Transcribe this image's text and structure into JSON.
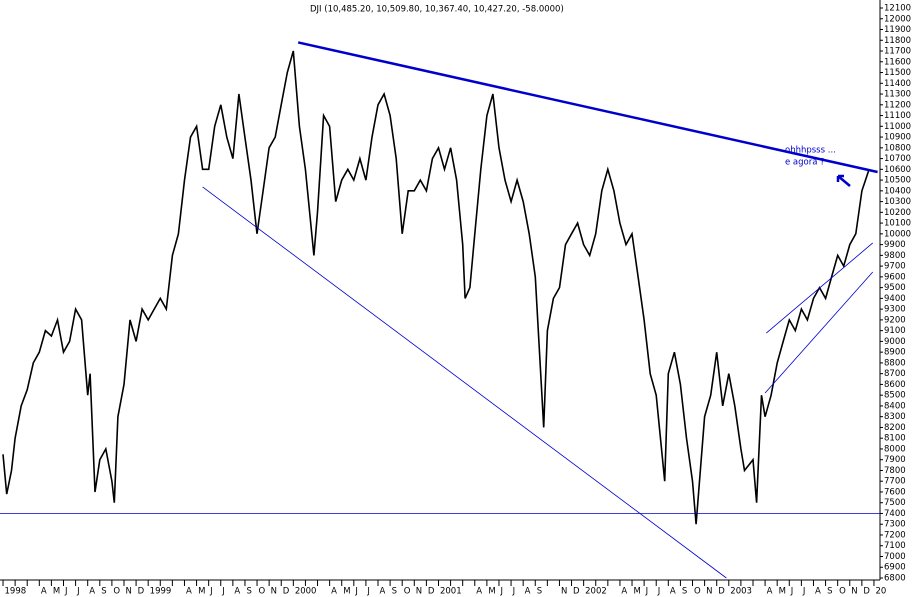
{
  "chart_data": {
    "type": "line",
    "title": "DJI (10,485.20, 10,509.80, 10,367.40, 10,427.20, -58.0000)",
    "annotations": [
      "ohhhpsss  ...",
      "e agora ?"
    ],
    "categories": [
      "1998",
      null,
      null,
      "A",
      "M",
      "J",
      "J",
      "A",
      "S",
      "O",
      "N",
      "D",
      "1999",
      null,
      null,
      "A",
      "M",
      "J",
      "J",
      "A",
      "S",
      "O",
      "N",
      "D",
      "2000",
      null,
      null,
      "A",
      "M",
      "J",
      "J",
      "A",
      "S",
      "O",
      "N",
      "D",
      "2001",
      null,
      null,
      "A",
      "M",
      "J",
      "J",
      "A",
      "S",
      null,
      "N",
      "D",
      "2002",
      null,
      null,
      "A",
      "M",
      "J",
      "J",
      "A",
      "S",
      "O",
      "N",
      "D",
      "2003",
      null,
      null,
      "A",
      "M",
      "J",
      "J",
      "A",
      "S",
      "O",
      "N",
      "D",
      "20"
    ],
    "x": [
      0,
      0.3,
      0.7,
      1,
      1.5,
      2,
      2.5,
      3,
      3.5,
      4,
      4.5,
      5,
      5.5,
      6,
      6.5,
      7,
      7.2,
      7.6,
      8,
      8.5,
      9,
      9.2,
      9.5,
      10,
      10.5,
      11,
      11.5,
      12,
      12.5,
      13,
      13.5,
      14,
      14.5,
      15,
      15.5,
      16,
      16.5,
      17,
      17.5,
      18,
      18.5,
      19,
      19.5,
      20,
      20.5,
      21,
      21.5,
      22,
      22.5,
      23,
      23.5,
      24,
      24.5,
      25,
      25.7,
      26,
      26.5,
      27,
      27.5,
      28,
      28.5,
      29,
      29.5,
      30,
      30.5,
      31,
      31.5,
      32,
      32.5,
      33,
      33.5,
      34,
      34.5,
      35,
      35.5,
      36,
      36.5,
      37,
      37.5,
      38,
      38.2,
      38.6,
      39,
      39.5,
      40,
      40.5,
      41,
      41.5,
      42,
      42.5,
      43,
      43.5,
      44,
      44.7,
      45,
      45.5,
      46,
      46.5,
      47,
      47.5,
      48,
      48.5,
      49,
      49.5,
      50,
      50.5,
      51,
      51.5,
      52,
      52.5,
      53,
      53.5,
      54,
      54.7,
      55,
      55.5,
      56,
      56.5,
      57,
      57.3,
      58,
      58.5,
      59,
      59.5,
      60,
      60.5,
      61,
      61.3,
      62,
      62.3,
      62.7,
      63,
      63.5,
      64,
      64.5,
      65,
      65.5,
      66,
      66.5,
      67,
      67.5,
      68,
      68.5,
      69,
      69.5,
      70,
      70.5,
      71,
      71.3,
      71.6
    ],
    "series": [
      {
        "name": "DJI",
        "color": "#000000",
        "values": [
          7950,
          7580,
          7800,
          8100,
          8400,
          8550,
          8800,
          8900,
          9100,
          9050,
          9200,
          8900,
          9000,
          9300,
          9200,
          8500,
          8700,
          7600,
          7900,
          8000,
          7700,
          7500,
          8300,
          8600,
          9200,
          9000,
          9300,
          9200,
          9300,
          9400,
          9300,
          9800,
          10000,
          10500,
          10900,
          11000,
          10600,
          10600,
          11000,
          11200,
          10900,
          10700,
          11300,
          10900,
          10500,
          10000,
          10400,
          10800,
          10900,
          11200,
          11500,
          11700,
          11000,
          10600,
          9800,
          10200,
          11100,
          11000,
          10300,
          10500,
          10600,
          10500,
          10700,
          10500,
          10900,
          11200,
          11300,
          11100,
          10700,
          10000,
          10400,
          10400,
          10500,
          10400,
          10700,
          10800,
          10600,
          10800,
          10500,
          9900,
          9400,
          9500,
          10000,
          10600,
          11100,
          11300,
          10800,
          10500,
          10300,
          10500,
          10300,
          10000,
          9600,
          8200,
          9100,
          9400,
          9500,
          9900,
          10000,
          10100,
          9900,
          9800,
          10000,
          10400,
          10600,
          10400,
          10100,
          9900,
          10000,
          9600,
          9200,
          8700,
          8500,
          7700,
          8700,
          8900,
          8600,
          8100,
          7700,
          7300,
          8300,
          8500,
          8900,
          8400,
          8700,
          8400,
          8000,
          7800,
          7900,
          7500,
          8500,
          8300,
          8500,
          8800,
          9000,
          9200,
          9100,
          9300,
          9200,
          9400,
          9500,
          9400,
          9600,
          9800,
          9700,
          9900,
          10000,
          10400,
          10500,
          10600
        ]
      }
    ],
    "trendlines": [
      {
        "color": "#0000cc",
        "width": 2.5,
        "x": [
          24.4,
          72.3
        ],
        "values": [
          11780,
          10575
        ]
      },
      {
        "color": "#0000cc",
        "width": 0.8,
        "x": [
          16.5,
          59.8
        ],
        "values": [
          10436,
          6800
        ]
      },
      {
        "color": "#0000cc",
        "width": 0.8,
        "x": [
          -0.25,
          72.5
        ],
        "values": [
          7400,
          7400
        ]
      },
      {
        "color": "#0000cc",
        "width": 0.8,
        "x": [
          63.1,
          71.9
        ],
        "values": [
          9078,
          9915
        ]
      },
      {
        "color": "#0000cc",
        "width": 0.8,
        "x": [
          63.0,
          71.9
        ],
        "values": [
          8520,
          9645
        ]
      }
    ],
    "xlim": [
      -0.25,
      72.5
    ],
    "ylim": [
      6800,
      12100
    ],
    "yticks": [
      6800,
      6900,
      7000,
      7100,
      7200,
      7300,
      7400,
      7500,
      7600,
      7700,
      7800,
      7900,
      8000,
      8100,
      8200,
      8300,
      8400,
      8500,
      8600,
      8700,
      8800,
      8900,
      9000,
      9100,
      9200,
      9300,
      9400,
      9500,
      9600,
      9700,
      9800,
      9900,
      10000,
      10100,
      10200,
      10300,
      10400,
      10500,
      10600,
      10700,
      10800,
      10900,
      11000,
      11100,
      11200,
      11300,
      11400,
      11500,
      11600,
      11700,
      11800,
      11900,
      12000,
      12100
    ]
  }
}
